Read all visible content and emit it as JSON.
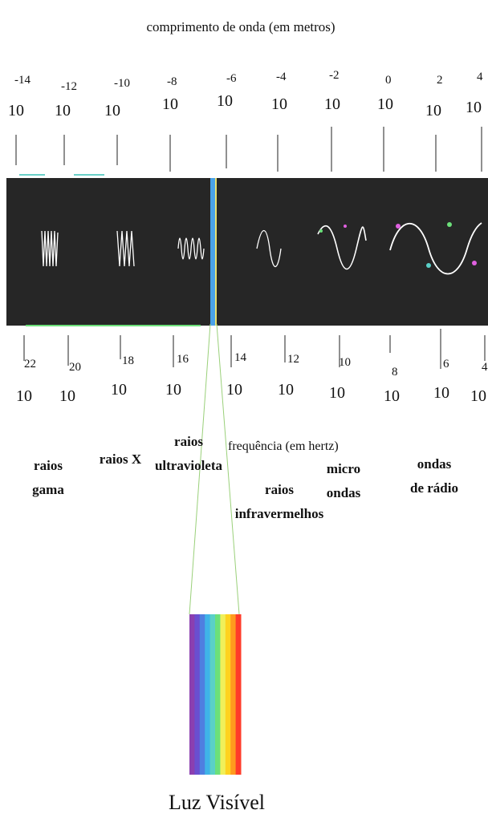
{
  "wavelength_title": "comprimento de onda (em metros)",
  "frequency_title": "frequência (em hertz)",
  "visible_light_label": "Luz Visível",
  "wavelength_scale": [
    {
      "base": "10",
      "exp": "-14"
    },
    {
      "base": "10",
      "exp": "-12"
    },
    {
      "base": "10",
      "exp": "-10"
    },
    {
      "base": "10",
      "exp": "-8"
    },
    {
      "base": "10",
      "exp": "-6"
    },
    {
      "base": "10",
      "exp": "-4"
    },
    {
      "base": "10",
      "exp": "-2"
    },
    {
      "base": "10",
      "exp": "0"
    },
    {
      "base": "10",
      "exp": "2"
    },
    {
      "base": "10",
      "exp": "4"
    }
  ],
  "frequency_scale": [
    {
      "base": "10",
      "exp": "22"
    },
    {
      "base": "10",
      "exp": "20"
    },
    {
      "base": "10",
      "exp": "18"
    },
    {
      "base": "10",
      "exp": "16"
    },
    {
      "base": "10",
      "exp": "14"
    },
    {
      "base": "10",
      "exp": "12"
    },
    {
      "base": "10",
      "exp": "10"
    },
    {
      "base": "10",
      "exp": "8"
    },
    {
      "base": "10",
      "exp": "6"
    },
    {
      "base": "10",
      "exp": "4"
    }
  ],
  "bands": {
    "gamma": [
      "raios",
      "gama"
    ],
    "xray": [
      "raios X"
    ],
    "uv": [
      "raios",
      "ultravioleta"
    ],
    "ir": [
      "raios",
      "infravermelhos"
    ],
    "micro": [
      "micro",
      "ondas"
    ],
    "radio": [
      "ondas",
      "de rádio"
    ]
  },
  "colors": {
    "band_bg": "#262626",
    "wave": "#ffffff",
    "visible_spectrum": [
      "#8b3fb0",
      "#6a4fd0",
      "#4f7fe0",
      "#3fb4e8",
      "#5ad0c8",
      "#6ce07a",
      "#f0f05a",
      "#ffd21e",
      "#ff9a1e",
      "#ff3b2a"
    ]
  }
}
